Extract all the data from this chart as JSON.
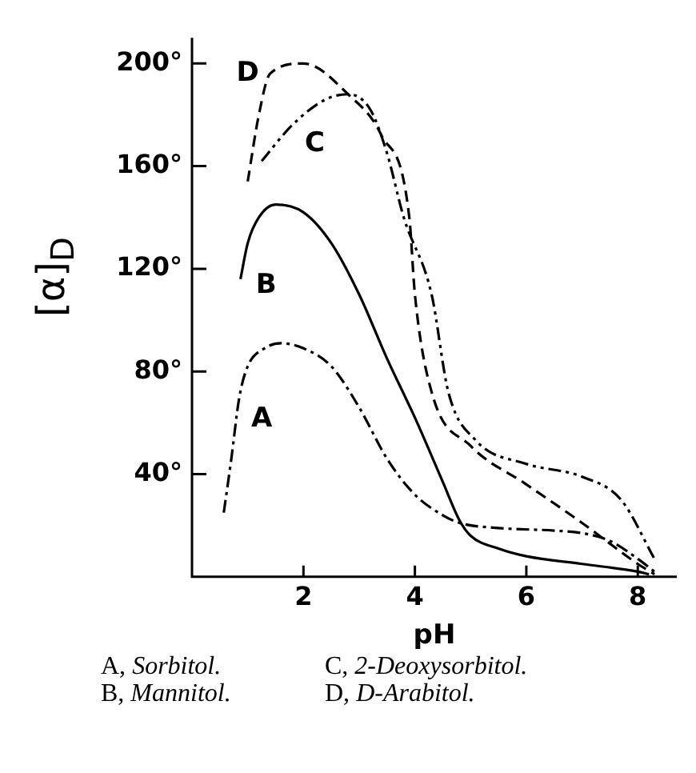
{
  "chart_data": {
    "type": "line",
    "xlabel": "pH",
    "ylabel": "[α]$_{D}$",
    "xlim": [
      0,
      8.7
    ],
    "xticks": [
      2,
      4,
      6,
      8
    ],
    "ylim": [
      0,
      210
    ],
    "yticks": [
      {
        "value": 40,
        "label": "40°"
      },
      {
        "value": 80,
        "label": "80°"
      },
      {
        "value": 120,
        "label": "120°"
      },
      {
        "value": 160,
        "label": "160°"
      },
      {
        "value": 200,
        "label": "200°"
      }
    ],
    "grid": false,
    "legend": false,
    "marker": "none",
    "series": [
      {
        "name": "A",
        "color": "#000000",
        "line_style": "dashdot",
        "x": [
          0.57,
          0.7,
          0.85,
          1.0,
          1.3,
          1.6,
          2,
          2.5,
          3,
          3.5,
          4,
          4.5,
          4.8,
          5.5,
          6.5,
          7,
          7.5,
          8,
          8.3
        ],
        "values": [
          25,
          45,
          70,
          82,
          89,
          91,
          89,
          82,
          66,
          46,
          32,
          24,
          21,
          19,
          18,
          17,
          14,
          7,
          2
        ]
      },
      {
        "name": "B",
        "color": "#000000",
        "line_style": "solid",
        "x": [
          0.87,
          1.0,
          1.2,
          1.5,
          2,
          2.5,
          3,
          3.5,
          4,
          4.5,
          4.8,
          5,
          5.5,
          6,
          7,
          8,
          8.2
        ],
        "values": [
          116,
          130,
          140,
          145,
          142,
          130,
          110,
          85,
          62,
          37,
          22,
          16,
          11,
          8,
          5,
          2,
          1
        ]
      },
      {
        "name": "C",
        "color": "#000000",
        "line_style": "dashdotdot",
        "x": [
          1.25,
          1.8,
          2.4,
          2.8,
          3.2,
          3.5,
          3.8,
          4.3,
          4.6,
          5.1,
          6,
          7,
          7.7,
          8.3
        ],
        "values": [
          162,
          176,
          186,
          188,
          182,
          165,
          140,
          110,
          72,
          53,
          44,
          39,
          30,
          7
        ]
      },
      {
        "name": "D",
        "color": "#000000",
        "line_style": "dashed",
        "x": [
          1.0,
          1.2,
          1.4,
          2.0,
          2.8,
          3.4,
          3.9,
          4.0,
          4.3,
          5.0,
          6,
          7,
          8,
          8.3
        ],
        "values": [
          154,
          180,
          196,
          200,
          188,
          172,
          140,
          110,
          72,
          51,
          36,
          21,
          5,
          1
        ]
      }
    ],
    "annotations": [
      "A, Sorbitol.",
      "C, 2-Deoxysorbitol.",
      "B, Mannitol.",
      "D, D-Arabitol."
    ]
  }
}
